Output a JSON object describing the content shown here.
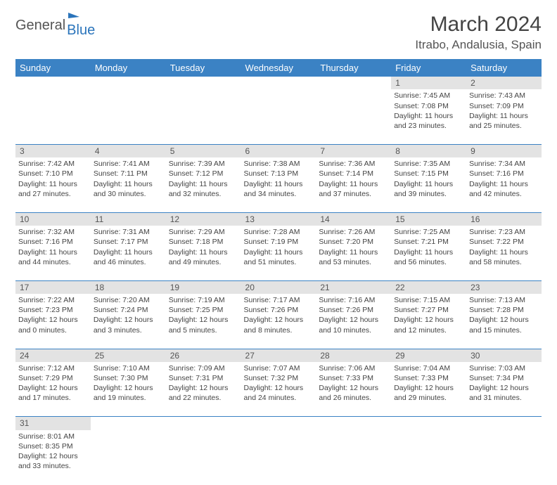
{
  "logo": {
    "text1": "General",
    "text2": "Blue"
  },
  "title": "March 2024",
  "location": "Itrabo, Andalusia, Spain",
  "colors": {
    "header_bg": "#3b82c4",
    "header_text": "#ffffff",
    "daynum_bg": "#e3e3e3",
    "row_border": "#3b82c4",
    "body_text": "#444444",
    "logo_blue": "#2a74bb"
  },
  "weekdays": [
    "Sunday",
    "Monday",
    "Tuesday",
    "Wednesday",
    "Thursday",
    "Friday",
    "Saturday"
  ],
  "weeks": [
    [
      null,
      null,
      null,
      null,
      null,
      {
        "n": "1",
        "sr": "Sunrise: 7:45 AM",
        "ss": "Sunset: 7:08 PM",
        "d1": "Daylight: 11 hours",
        "d2": "and 23 minutes."
      },
      {
        "n": "2",
        "sr": "Sunrise: 7:43 AM",
        "ss": "Sunset: 7:09 PM",
        "d1": "Daylight: 11 hours",
        "d2": "and 25 minutes."
      }
    ],
    [
      {
        "n": "3",
        "sr": "Sunrise: 7:42 AM",
        "ss": "Sunset: 7:10 PM",
        "d1": "Daylight: 11 hours",
        "d2": "and 27 minutes."
      },
      {
        "n": "4",
        "sr": "Sunrise: 7:41 AM",
        "ss": "Sunset: 7:11 PM",
        "d1": "Daylight: 11 hours",
        "d2": "and 30 minutes."
      },
      {
        "n": "5",
        "sr": "Sunrise: 7:39 AM",
        "ss": "Sunset: 7:12 PM",
        "d1": "Daylight: 11 hours",
        "d2": "and 32 minutes."
      },
      {
        "n": "6",
        "sr": "Sunrise: 7:38 AM",
        "ss": "Sunset: 7:13 PM",
        "d1": "Daylight: 11 hours",
        "d2": "and 34 minutes."
      },
      {
        "n": "7",
        "sr": "Sunrise: 7:36 AM",
        "ss": "Sunset: 7:14 PM",
        "d1": "Daylight: 11 hours",
        "d2": "and 37 minutes."
      },
      {
        "n": "8",
        "sr": "Sunrise: 7:35 AM",
        "ss": "Sunset: 7:15 PM",
        "d1": "Daylight: 11 hours",
        "d2": "and 39 minutes."
      },
      {
        "n": "9",
        "sr": "Sunrise: 7:34 AM",
        "ss": "Sunset: 7:16 PM",
        "d1": "Daylight: 11 hours",
        "d2": "and 42 minutes."
      }
    ],
    [
      {
        "n": "10",
        "sr": "Sunrise: 7:32 AM",
        "ss": "Sunset: 7:16 PM",
        "d1": "Daylight: 11 hours",
        "d2": "and 44 minutes."
      },
      {
        "n": "11",
        "sr": "Sunrise: 7:31 AM",
        "ss": "Sunset: 7:17 PM",
        "d1": "Daylight: 11 hours",
        "d2": "and 46 minutes."
      },
      {
        "n": "12",
        "sr": "Sunrise: 7:29 AM",
        "ss": "Sunset: 7:18 PM",
        "d1": "Daylight: 11 hours",
        "d2": "and 49 minutes."
      },
      {
        "n": "13",
        "sr": "Sunrise: 7:28 AM",
        "ss": "Sunset: 7:19 PM",
        "d1": "Daylight: 11 hours",
        "d2": "and 51 minutes."
      },
      {
        "n": "14",
        "sr": "Sunrise: 7:26 AM",
        "ss": "Sunset: 7:20 PM",
        "d1": "Daylight: 11 hours",
        "d2": "and 53 minutes."
      },
      {
        "n": "15",
        "sr": "Sunrise: 7:25 AM",
        "ss": "Sunset: 7:21 PM",
        "d1": "Daylight: 11 hours",
        "d2": "and 56 minutes."
      },
      {
        "n": "16",
        "sr": "Sunrise: 7:23 AM",
        "ss": "Sunset: 7:22 PM",
        "d1": "Daylight: 11 hours",
        "d2": "and 58 minutes."
      }
    ],
    [
      {
        "n": "17",
        "sr": "Sunrise: 7:22 AM",
        "ss": "Sunset: 7:23 PM",
        "d1": "Daylight: 12 hours",
        "d2": "and 0 minutes."
      },
      {
        "n": "18",
        "sr": "Sunrise: 7:20 AM",
        "ss": "Sunset: 7:24 PM",
        "d1": "Daylight: 12 hours",
        "d2": "and 3 minutes."
      },
      {
        "n": "19",
        "sr": "Sunrise: 7:19 AM",
        "ss": "Sunset: 7:25 PM",
        "d1": "Daylight: 12 hours",
        "d2": "and 5 minutes."
      },
      {
        "n": "20",
        "sr": "Sunrise: 7:17 AM",
        "ss": "Sunset: 7:26 PM",
        "d1": "Daylight: 12 hours",
        "d2": "and 8 minutes."
      },
      {
        "n": "21",
        "sr": "Sunrise: 7:16 AM",
        "ss": "Sunset: 7:26 PM",
        "d1": "Daylight: 12 hours",
        "d2": "and 10 minutes."
      },
      {
        "n": "22",
        "sr": "Sunrise: 7:15 AM",
        "ss": "Sunset: 7:27 PM",
        "d1": "Daylight: 12 hours",
        "d2": "and 12 minutes."
      },
      {
        "n": "23",
        "sr": "Sunrise: 7:13 AM",
        "ss": "Sunset: 7:28 PM",
        "d1": "Daylight: 12 hours",
        "d2": "and 15 minutes."
      }
    ],
    [
      {
        "n": "24",
        "sr": "Sunrise: 7:12 AM",
        "ss": "Sunset: 7:29 PM",
        "d1": "Daylight: 12 hours",
        "d2": "and 17 minutes."
      },
      {
        "n": "25",
        "sr": "Sunrise: 7:10 AM",
        "ss": "Sunset: 7:30 PM",
        "d1": "Daylight: 12 hours",
        "d2": "and 19 minutes."
      },
      {
        "n": "26",
        "sr": "Sunrise: 7:09 AM",
        "ss": "Sunset: 7:31 PM",
        "d1": "Daylight: 12 hours",
        "d2": "and 22 minutes."
      },
      {
        "n": "27",
        "sr": "Sunrise: 7:07 AM",
        "ss": "Sunset: 7:32 PM",
        "d1": "Daylight: 12 hours",
        "d2": "and 24 minutes."
      },
      {
        "n": "28",
        "sr": "Sunrise: 7:06 AM",
        "ss": "Sunset: 7:33 PM",
        "d1": "Daylight: 12 hours",
        "d2": "and 26 minutes."
      },
      {
        "n": "29",
        "sr": "Sunrise: 7:04 AM",
        "ss": "Sunset: 7:33 PM",
        "d1": "Daylight: 12 hours",
        "d2": "and 29 minutes."
      },
      {
        "n": "30",
        "sr": "Sunrise: 7:03 AM",
        "ss": "Sunset: 7:34 PM",
        "d1": "Daylight: 12 hours",
        "d2": "and 31 minutes."
      }
    ],
    [
      {
        "n": "31",
        "sr": "Sunrise: 8:01 AM",
        "ss": "Sunset: 8:35 PM",
        "d1": "Daylight: 12 hours",
        "d2": "and 33 minutes."
      },
      null,
      null,
      null,
      null,
      null,
      null
    ]
  ]
}
